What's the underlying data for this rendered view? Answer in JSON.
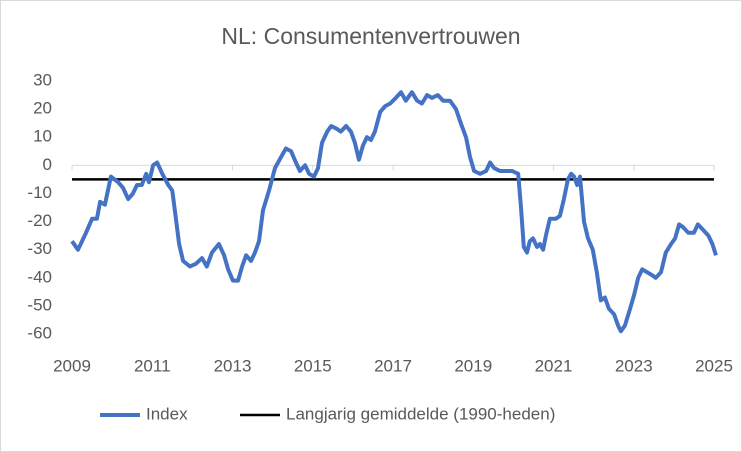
{
  "chart_data": {
    "type": "line",
    "title": "NL: Consumentenvertrouwen",
    "xlim": [
      2009,
      2025
    ],
    "xticks": [
      2009,
      2011,
      2013,
      2015,
      2017,
      2019,
      2021,
      2023,
      2025
    ],
    "ylim": [
      -60,
      30
    ],
    "yticks": [
      -60,
      -50,
      -40,
      -30,
      -20,
      -10,
      0,
      10,
      20,
      30
    ],
    "legend": "bottom",
    "series": [
      {
        "name": "Index",
        "color": "#4472c4",
        "x": [
          2009.0,
          2009.15,
          2009.35,
          2009.5,
          2009.62,
          2009.7,
          2009.82,
          2009.97,
          2010.15,
          2010.27,
          2010.4,
          2010.52,
          2010.62,
          2010.74,
          2010.85,
          2010.92,
          2011.02,
          2011.12,
          2011.25,
          2011.4,
          2011.5,
          2011.6,
          2011.67,
          2011.77,
          2011.94,
          2012.09,
          2012.24,
          2012.36,
          2012.49,
          2012.66,
          2012.79,
          2012.89,
          2013.01,
          2013.14,
          2013.24,
          2013.34,
          2013.46,
          2013.56,
          2013.66,
          2013.76,
          2013.91,
          2014.06,
          2014.21,
          2014.33,
          2014.46,
          2014.58,
          2014.68,
          2014.81,
          2014.91,
          2015.03,
          2015.13,
          2015.23,
          2015.36,
          2015.46,
          2015.6,
          2015.7,
          2015.83,
          2015.95,
          2016.05,
          2016.15,
          2016.25,
          2016.35,
          2016.45,
          2016.55,
          2016.68,
          2016.8,
          2016.93,
          2017.07,
          2017.2,
          2017.32,
          2017.47,
          2017.6,
          2017.72,
          2017.85,
          2017.97,
          2018.12,
          2018.25,
          2018.42,
          2018.57,
          2018.69,
          2018.82,
          2018.92,
          2019.02,
          2019.17,
          2019.32,
          2019.42,
          2019.52,
          2019.67,
          2019.82,
          2019.97,
          2020.12,
          2020.19,
          2020.26,
          2020.34,
          2020.41,
          2020.49,
          2020.59,
          2020.66,
          2020.74,
          2020.81,
          2020.91,
          2021.06,
          2021.16,
          2021.26,
          2021.36,
          2021.44,
          2021.51,
          2021.59,
          2021.66,
          2021.76,
          2021.86,
          2021.98,
          2022.08,
          2022.18,
          2022.28,
          2022.38,
          2022.51,
          2022.61,
          2022.68,
          2022.78,
          2022.91,
          2023.01,
          2023.11,
          2023.21,
          2023.33,
          2023.45,
          2023.55,
          2023.68,
          2023.8,
          2023.93,
          2024.03,
          2024.13,
          2024.23,
          2024.36,
          2024.5,
          2024.6,
          2024.73,
          2024.86,
          2024.96,
          2025.05
        ],
        "values": [
          -27,
          -30,
          -24,
          -19,
          -19,
          -13,
          -14,
          -4,
          -6,
          -8,
          -12,
          -10,
          -7,
          -7,
          -3,
          -6,
          0,
          1,
          -3,
          -7,
          -9,
          -20,
          -28,
          -34,
          -36,
          -35,
          -33,
          -36,
          -31,
          -28,
          -32,
          -37,
          -41,
          -41,
          -36,
          -32,
          -34,
          -31,
          -27,
          -16,
          -9,
          -1,
          3,
          6,
          5,
          1,
          -2,
          0,
          -3,
          -4,
          -1,
          8,
          12,
          14,
          13,
          12,
          14,
          12,
          8,
          2,
          7,
          10,
          9,
          12,
          19,
          21,
          22,
          24,
          26,
          23,
          26,
          23,
          22,
          25,
          24,
          25,
          23,
          23,
          20,
          15,
          10,
          3,
          -2,
          -3,
          -2,
          1,
          -1,
          -2,
          -2,
          -2,
          -3,
          -15,
          -29,
          -31,
          -27,
          -26,
          -29,
          -28,
          -30,
          -25,
          -19,
          -19,
          -18,
          -12,
          -5,
          -3,
          -4,
          -7,
          -4,
          -20,
          -26,
          -30,
          -38,
          -48,
          -47,
          -51,
          -53,
          -57,
          -59,
          -57,
          -51,
          -46,
          -40,
          -37,
          -38,
          -39,
          -40,
          -38,
          -31,
          -28,
          -26,
          -21,
          -22,
          -24,
          -24,
          -21,
          -23,
          -25,
          -28,
          -32
        ]
      }
    ],
    "reference_line": {
      "name": "Langjarig gemiddelde (1990-heden)",
      "value": -5,
      "color": "#000000"
    }
  }
}
